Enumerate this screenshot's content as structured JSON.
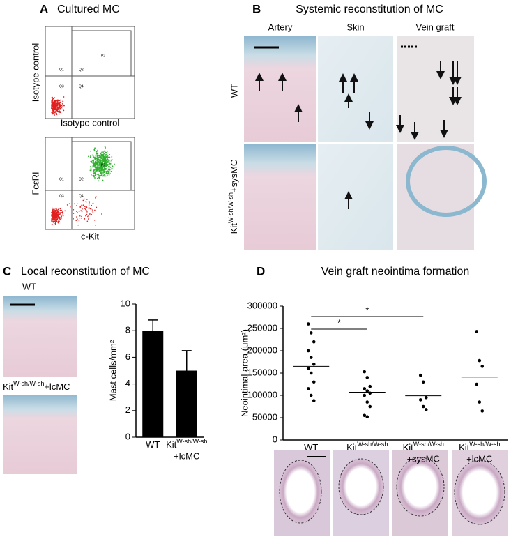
{
  "panel_a": {
    "letter": "A",
    "title": "Cultured MC",
    "plots": [
      {
        "ylabel": "Isotype control",
        "xlabel": "Isotype control",
        "gates": [
          "Q1",
          "Q2",
          "Q3",
          "Q4",
          "P2"
        ]
      },
      {
        "ylabel": "FcεRI",
        "xlabel": "c-Kit",
        "gates": [
          "Q1",
          "Q2",
          "Q3",
          "Q4",
          "P2"
        ]
      }
    ]
  },
  "panel_b": {
    "letter": "B",
    "title": "Systemic reconstitution of MC",
    "columns": [
      "Artery",
      "Skin",
      "Vein graft"
    ],
    "rows": [
      {
        "text": "WT"
      },
      {
        "text": "Kit",
        "sup": "W-sh/W-sh",
        "suffix": "+sysMC"
      }
    ]
  },
  "panel_c": {
    "letter": "C",
    "title": "Local reconstitution of MC",
    "image_labels": [
      {
        "text": "WT"
      },
      {
        "text": "Kit",
        "sup": "W-sh/W-sh",
        "suffix": "+lcMC"
      }
    ]
  },
  "panel_d": {
    "letter": "D"
  },
  "chart_data": [
    {
      "type": "bar",
      "ylabel": "Mast cells/mm²",
      "categories": [
        {
          "text": "WT"
        },
        {
          "text": "Kit",
          "sup": "W-sh/W-sh",
          "line2": "+lcMC"
        }
      ],
      "values": [
        8,
        5
      ],
      "errors": [
        0.8,
        1.5
      ],
      "color": "#000000",
      "ylim": [
        0,
        10
      ],
      "yticks": [
        0,
        2,
        4,
        6,
        8,
        10
      ]
    },
    {
      "type": "strip",
      "title": "Vein graft neointima formation",
      "ylabel": "Neointimal area (μm²)",
      "categories": [
        {
          "text": "WT"
        },
        {
          "text": "Kit",
          "sup": "W-sh/W-sh"
        },
        {
          "text": "Kit",
          "sup": "W-sh/W-sh",
          "line2": "+sysMC"
        },
        {
          "text": "Kit",
          "sup": "W-sh/W-sh",
          "line2": "+lcMC"
        }
      ],
      "values": [
        [
          260000,
          240000,
          220000,
          200000,
          185000,
          170000,
          160000,
          150000,
          130000,
          115000,
          100000,
          88000
        ],
        [
          153000,
          140000,
          120000,
          115000,
          110000,
          105000,
          100000,
          85000,
          75000,
          55000,
          52000
        ],
        [
          145000,
          130000,
          95000,
          90000,
          75000,
          68000
        ],
        [
          243000,
          178000,
          165000,
          125000,
          85000,
          65000
        ]
      ],
      "means": [
        165000,
        107000,
        99000,
        141000
      ],
      "color": "#000000",
      "ylim": [
        0,
        300000
      ],
      "yticks": [
        0,
        50000,
        100000,
        150000,
        200000,
        250000,
        300000
      ],
      "annotations": [
        "*",
        "*"
      ]
    }
  ]
}
